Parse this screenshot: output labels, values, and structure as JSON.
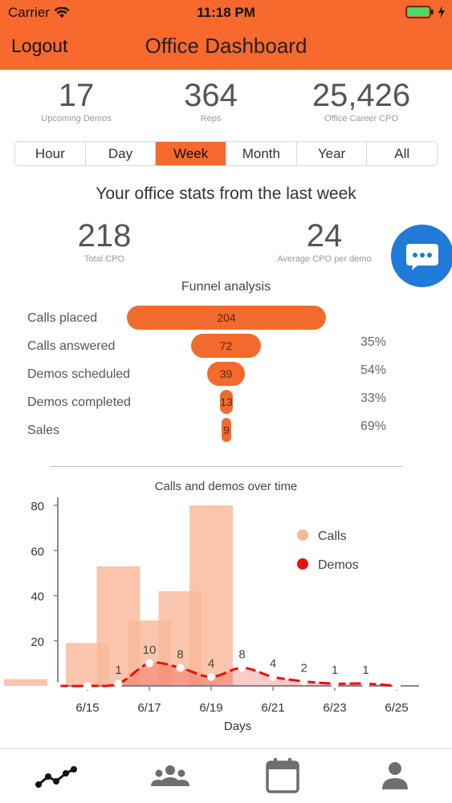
{
  "status_bar": {
    "carrier": "Carrier",
    "time": "11:18 PM"
  },
  "header": {
    "logout_label": "Logout",
    "title": "Office Dashboard"
  },
  "kpis": [
    {
      "value": "17",
      "label": "Upcoming Demos"
    },
    {
      "value": "364",
      "label": "Reps"
    },
    {
      "value": "25,426",
      "label": "Office Career CPO"
    }
  ],
  "periods": {
    "options": [
      "Hour",
      "Day",
      "Week",
      "Month",
      "Year",
      "All"
    ],
    "selected": "Week"
  },
  "subheading": "Your office stats from the last week",
  "stats": [
    {
      "value": "218",
      "label": "Total CPO"
    },
    {
      "value": "24",
      "label": "Average CPO per demo"
    }
  ],
  "funnel": {
    "title": "Funnel analysis",
    "rows": [
      {
        "label": "Calls placed",
        "value": 204,
        "percent": ""
      },
      {
        "label": "Calls answered",
        "value": 72,
        "percent": "35%"
      },
      {
        "label": "Demos scheduled",
        "value": 39,
        "percent": "54%"
      },
      {
        "label": "Demos completed",
        "value": 13,
        "percent": "33%"
      },
      {
        "label": "Sales",
        "value": 9,
        "percent": "69%"
      }
    ]
  },
  "chart_data": {
    "type": "bar",
    "title": "Calls and demos over time",
    "xlabel": "Days",
    "ylabel": "",
    "ylim": [
      0,
      80
    ],
    "yticks": [
      20,
      40,
      60,
      80
    ],
    "xtick_labels": [
      "6/15",
      "6/17",
      "6/19",
      "6/21",
      "6/23",
      "6/25"
    ],
    "legend_position": "top-right",
    "series": [
      {
        "name": "Calls",
        "kind": "bar",
        "color": "#f9b89a",
        "x": [
          "6/13",
          "6/14",
          "6/15",
          "6/16",
          "6/17",
          "6/18",
          "6/19",
          "6/20",
          "6/21",
          "6/22",
          "6/23",
          "6/24",
          "6/25"
        ],
        "values": [
          3,
          0,
          19,
          53,
          29,
          42,
          80,
          0,
          0,
          0,
          0,
          0,
          0
        ]
      },
      {
        "name": "Demos",
        "kind": "line",
        "color": "#e8100f",
        "x": [
          "6/14",
          "6/15",
          "6/16",
          "6/17",
          "6/18",
          "6/19",
          "6/20",
          "6/21",
          "6/22",
          "6/23",
          "6/24",
          "6/25"
        ],
        "values": [
          0,
          0,
          1,
          10,
          8,
          4,
          8,
          4,
          2,
          1,
          1,
          0
        ],
        "labels": [
          "",
          "",
          "1",
          "10",
          "8",
          "4",
          "8",
          "4",
          "2",
          "1",
          "1",
          ""
        ]
      }
    ]
  },
  "tabs": [
    {
      "name": "dashboard",
      "icon": "trend-line-icon",
      "selected": true
    },
    {
      "name": "team",
      "icon": "group-icon"
    },
    {
      "name": "calendar",
      "icon": "calendar-icon"
    },
    {
      "name": "profile",
      "icon": "person-icon"
    }
  ],
  "colors": {
    "brand": "#f7692d",
    "chat": "#1f7ad8",
    "demos": "#e8100f",
    "calls": "#f9b89a"
  }
}
